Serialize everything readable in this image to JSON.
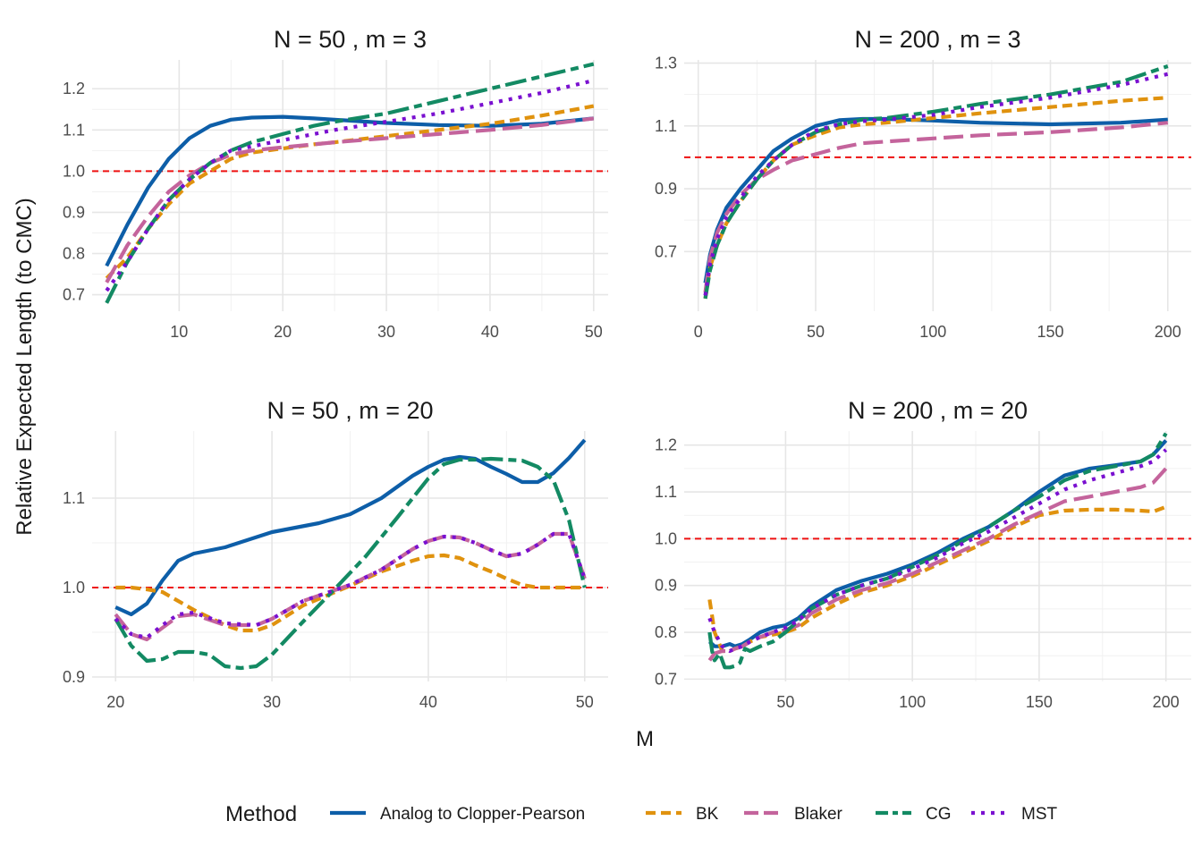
{
  "chart_data": [
    {
      "type": "line",
      "title": "N = 50 , m = 3",
      "xlim": [
        1.6,
        51.4
      ],
      "ylim": [
        0.66,
        1.27
      ],
      "xticks": [
        10,
        20,
        30,
        40,
        50
      ],
      "yticks": [
        0.7,
        0.8,
        0.9,
        1.0,
        1.1,
        1.2
      ],
      "ytick_labels": [
        "0.7",
        "0.8",
        "0.9",
        "1.0",
        "1.1",
        "1.2"
      ],
      "reference_y": 1.0,
      "series": [
        {
          "name": "Analog to Clopper-Pearson",
          "x": [
            3,
            5,
            7,
            9,
            11,
            13,
            15,
            17,
            20,
            23,
            25,
            30,
            35,
            40,
            45,
            50
          ],
          "y": [
            0.77,
            0.87,
            0.96,
            1.03,
            1.08,
            1.11,
            1.125,
            1.13,
            1.132,
            1.128,
            1.125,
            1.117,
            1.112,
            1.11,
            1.115,
            1.128
          ]
        },
        {
          "name": "BK",
          "x": [
            3,
            5,
            7,
            9,
            11,
            13,
            15,
            17,
            20,
            23,
            25,
            30,
            35,
            40,
            45,
            50
          ],
          "y": [
            0.74,
            0.79,
            0.86,
            0.92,
            0.97,
            1.0,
            1.03,
            1.045,
            1.055,
            1.065,
            1.07,
            1.085,
            1.1,
            1.115,
            1.135,
            1.158
          ]
        },
        {
          "name": "Blaker",
          "x": [
            3,
            5,
            7,
            9,
            11,
            13,
            15,
            17,
            20,
            23,
            25,
            30,
            35,
            40,
            45,
            50
          ],
          "y": [
            0.73,
            0.82,
            0.89,
            0.95,
            0.99,
            1.02,
            1.04,
            1.05,
            1.058,
            1.065,
            1.07,
            1.08,
            1.09,
            1.1,
            1.112,
            1.128
          ]
        },
        {
          "name": "CG",
          "x": [
            3,
            5,
            7,
            9,
            11,
            13,
            15,
            17,
            20,
            23,
            25,
            30,
            35,
            40,
            45,
            50
          ],
          "y": [
            0.68,
            0.78,
            0.86,
            0.93,
            0.98,
            1.02,
            1.05,
            1.07,
            1.09,
            1.11,
            1.12,
            1.14,
            1.17,
            1.2,
            1.23,
            1.26
          ]
        },
        {
          "name": "MST",
          "x": [
            3,
            5,
            7,
            9,
            11,
            13,
            15,
            17,
            20,
            23,
            25,
            30,
            35,
            40,
            45,
            50
          ],
          "y": [
            0.71,
            0.78,
            0.86,
            0.93,
            0.98,
            1.02,
            1.05,
            1.06,
            1.075,
            1.09,
            1.1,
            1.12,
            1.14,
            1.165,
            1.19,
            1.22
          ]
        }
      ]
    },
    {
      "type": "line",
      "title": "N = 200 , m = 3",
      "xlim": [
        -6,
        210
      ],
      "ylim": [
        0.51,
        1.31
      ],
      "xticks": [
        0,
        50,
        100,
        150,
        200
      ],
      "yticks": [
        0.7,
        0.9,
        1.1,
        1.3
      ],
      "ytick_labels": [
        "0.7",
        "0.9",
        "1.1",
        "1.3"
      ],
      "reference_y": 1.0,
      "series": [
        {
          "name": "Analog to Clopper-Pearson",
          "x": [
            3,
            5,
            8,
            12,
            18,
            25,
            32,
            40,
            50,
            60,
            70,
            80,
            100,
            120,
            150,
            180,
            200
          ],
          "y": [
            0.6,
            0.69,
            0.77,
            0.84,
            0.9,
            0.96,
            1.02,
            1.06,
            1.1,
            1.118,
            1.122,
            1.122,
            1.117,
            1.11,
            1.105,
            1.11,
            1.12
          ]
        },
        {
          "name": "BK",
          "x": [
            3,
            5,
            8,
            12,
            18,
            25,
            32,
            40,
            50,
            60,
            70,
            80,
            100,
            120,
            150,
            180,
            200
          ],
          "y": [
            0.55,
            0.65,
            0.72,
            0.79,
            0.86,
            0.93,
            0.99,
            1.04,
            1.07,
            1.095,
            1.105,
            1.11,
            1.125,
            1.14,
            1.16,
            1.18,
            1.19
          ]
        },
        {
          "name": "Blaker",
          "x": [
            3,
            5,
            8,
            12,
            18,
            25,
            32,
            40,
            50,
            60,
            70,
            80,
            100,
            120,
            150,
            180,
            200
          ],
          "y": [
            0.57,
            0.68,
            0.76,
            0.82,
            0.88,
            0.93,
            0.96,
            0.99,
            1.01,
            1.03,
            1.045,
            1.05,
            1.06,
            1.07,
            1.08,
            1.095,
            1.11
          ]
        },
        {
          "name": "CG",
          "x": [
            3,
            5,
            8,
            12,
            18,
            25,
            32,
            40,
            50,
            60,
            70,
            80,
            100,
            120,
            150,
            180,
            200
          ],
          "y": [
            0.55,
            0.64,
            0.72,
            0.79,
            0.86,
            0.93,
            0.99,
            1.04,
            1.08,
            1.105,
            1.12,
            1.125,
            1.145,
            1.17,
            1.2,
            1.24,
            1.29
          ]
        },
        {
          "name": "MST",
          "x": [
            3,
            5,
            8,
            12,
            18,
            25,
            32,
            40,
            50,
            60,
            70,
            80,
            100,
            120,
            150,
            180,
            200
          ],
          "y": [
            0.56,
            0.66,
            0.74,
            0.81,
            0.87,
            0.94,
            0.99,
            1.04,
            1.085,
            1.105,
            1.115,
            1.12,
            1.135,
            1.16,
            1.19,
            1.23,
            1.265
          ]
        }
      ]
    },
    {
      "type": "line",
      "title": "N = 50 , m = 20",
      "xlim": [
        18.5,
        51.5
      ],
      "ylim": [
        0.895,
        1.175
      ],
      "xticks": [
        20,
        30,
        40,
        50
      ],
      "yticks": [
        0.9,
        1.0,
        1.1
      ],
      "ytick_labels": [
        "0.9",
        "1.0",
        "1.1"
      ],
      "reference_y": 1.0,
      "series": [
        {
          "name": "Analog to Clopper-Pearson",
          "x": [
            20,
            21,
            22,
            23,
            24,
            25,
            27,
            30,
            33,
            35,
            37,
            39,
            40,
            41,
            42,
            43,
            44,
            45,
            46,
            47,
            48,
            49,
            50
          ],
          "y": [
            0.978,
            0.97,
            0.982,
            1.008,
            1.03,
            1.038,
            1.045,
            1.062,
            1.072,
            1.082,
            1.1,
            1.125,
            1.135,
            1.143,
            1.146,
            1.144,
            1.135,
            1.127,
            1.118,
            1.118,
            1.128,
            1.145,
            1.165
          ]
        },
        {
          "name": "BK",
          "x": [
            20,
            21,
            22,
            23,
            24,
            25,
            27,
            28,
            29,
            30,
            32,
            35,
            37,
            39,
            40,
            41,
            42,
            43,
            44,
            45,
            46,
            47,
            48,
            49,
            50
          ],
          "y": [
            1.0,
            1.0,
            0.998,
            0.995,
            0.985,
            0.975,
            0.958,
            0.952,
            0.952,
            0.958,
            0.98,
            1.002,
            1.018,
            1.03,
            1.035,
            1.036,
            1.033,
            1.025,
            1.018,
            1.01,
            1.003,
            1.0,
            1.0,
            1.0,
            1.0
          ]
        },
        {
          "name": "Blaker",
          "x": [
            20,
            21,
            22,
            23,
            24,
            25,
            27,
            29,
            30,
            32,
            35,
            37,
            39,
            40,
            41,
            42,
            43,
            44,
            45,
            46,
            47,
            48,
            49,
            50
          ],
          "y": [
            0.97,
            0.948,
            0.942,
            0.955,
            0.968,
            0.97,
            0.958,
            0.958,
            0.965,
            0.985,
            1.003,
            1.02,
            1.043,
            1.052,
            1.057,
            1.056,
            1.05,
            1.042,
            1.035,
            1.038,
            1.048,
            1.06,
            1.06,
            1.01
          ]
        },
        {
          "name": "CG",
          "x": [
            20,
            21,
            22,
            23,
            24,
            25,
            26,
            27,
            28,
            29,
            30,
            32,
            34,
            36,
            38,
            40,
            41,
            42,
            43,
            44,
            45,
            46,
            47,
            48,
            49,
            50
          ],
          "y": [
            0.965,
            0.935,
            0.918,
            0.92,
            0.928,
            0.928,
            0.925,
            0.912,
            0.91,
            0.912,
            0.925,
            0.962,
            0.998,
            1.035,
            1.078,
            1.122,
            1.138,
            1.143,
            1.143,
            1.144,
            1.143,
            1.142,
            1.135,
            1.12,
            1.075,
            1.0
          ]
        },
        {
          "name": "MST",
          "x": [
            20,
            21,
            22,
            23,
            24,
            25,
            27,
            29,
            30,
            32,
            35,
            37,
            39,
            40,
            41,
            42,
            43,
            44,
            45,
            46,
            47,
            48,
            49,
            50
          ],
          "y": [
            0.965,
            0.948,
            0.944,
            0.958,
            0.97,
            0.972,
            0.96,
            0.958,
            0.965,
            0.985,
            1.003,
            1.02,
            1.043,
            1.052,
            1.057,
            1.056,
            1.05,
            1.042,
            1.035,
            1.038,
            1.048,
            1.06,
            1.06,
            1.01
          ]
        }
      ]
    },
    {
      "type": "line",
      "title": "N = 200 , m = 20",
      "xlim": [
        10,
        210
      ],
      "ylim": [
        0.695,
        1.23
      ],
      "xticks": [
        50,
        100,
        150,
        200
      ],
      "yticks": [
        0.7,
        0.8,
        0.9,
        1.0,
        1.1,
        1.2
      ],
      "ytick_labels": [
        "0.7",
        "0.8",
        "0.9",
        "1.0",
        "1.1",
        "1.2"
      ],
      "reference_y": 1.0,
      "series": [
        {
          "name": "Analog to Clopper-Pearson",
          "x": [
            20,
            22,
            25,
            28,
            30,
            33,
            36,
            40,
            45,
            50,
            55,
            60,
            70,
            80,
            90,
            100,
            110,
            120,
            130,
            140,
            150,
            160,
            170,
            180,
            190,
            195,
            200
          ],
          "y": [
            0.78,
            0.77,
            0.77,
            0.775,
            0.77,
            0.775,
            0.785,
            0.8,
            0.81,
            0.815,
            0.83,
            0.855,
            0.89,
            0.91,
            0.925,
            0.945,
            0.97,
            1.0,
            1.025,
            1.06,
            1.1,
            1.135,
            1.15,
            1.157,
            1.165,
            1.18,
            1.21
          ]
        },
        {
          "name": "BK",
          "x": [
            20,
            22,
            25,
            28,
            30,
            33,
            36,
            40,
            45,
            50,
            55,
            60,
            70,
            80,
            90,
            100,
            110,
            120,
            130,
            140,
            150,
            160,
            170,
            180,
            190,
            195,
            200
          ],
          "y": [
            0.87,
            0.8,
            0.76,
            0.76,
            0.765,
            0.77,
            0.78,
            0.79,
            0.795,
            0.8,
            0.81,
            0.83,
            0.86,
            0.885,
            0.9,
            0.92,
            0.945,
            0.97,
            0.995,
            1.025,
            1.05,
            1.06,
            1.062,
            1.062,
            1.06,
            1.058,
            1.068
          ]
        },
        {
          "name": "Blaker",
          "x": [
            20,
            22,
            25,
            28,
            30,
            33,
            36,
            40,
            45,
            50,
            55,
            60,
            70,
            80,
            90,
            100,
            110,
            120,
            130,
            140,
            150,
            160,
            170,
            180,
            190,
            195,
            200
          ],
          "y": [
            0.74,
            0.755,
            0.76,
            0.76,
            0.765,
            0.77,
            0.78,
            0.79,
            0.8,
            0.805,
            0.815,
            0.84,
            0.87,
            0.89,
            0.905,
            0.925,
            0.95,
            0.975,
            1.0,
            1.03,
            1.055,
            1.08,
            1.09,
            1.1,
            1.11,
            1.12,
            1.15
          ]
        },
        {
          "name": "CG",
          "x": [
            20,
            21,
            22,
            24,
            26,
            28,
            30,
            32,
            34,
            36,
            40,
            45,
            50,
            55,
            60,
            70,
            80,
            90,
            100,
            110,
            120,
            130,
            140,
            150,
            160,
            170,
            180,
            190,
            195,
            200
          ],
          "y": [
            0.8,
            0.76,
            0.74,
            0.755,
            0.725,
            0.725,
            0.728,
            0.735,
            0.765,
            0.76,
            0.77,
            0.78,
            0.8,
            0.825,
            0.85,
            0.88,
            0.9,
            0.915,
            0.94,
            0.965,
            0.995,
            1.025,
            1.06,
            1.09,
            1.125,
            1.145,
            1.155,
            1.165,
            1.18,
            1.225
          ]
        },
        {
          "name": "MST",
          "x": [
            20,
            22,
            25,
            28,
            30,
            33,
            36,
            40,
            45,
            50,
            55,
            60,
            70,
            80,
            90,
            100,
            110,
            120,
            130,
            140,
            150,
            160,
            170,
            180,
            190,
            195,
            200
          ],
          "y": [
            0.83,
            0.8,
            0.77,
            0.76,
            0.765,
            0.77,
            0.78,
            0.79,
            0.8,
            0.81,
            0.825,
            0.85,
            0.88,
            0.9,
            0.915,
            0.935,
            0.96,
            0.99,
            1.015,
            1.045,
            1.075,
            1.105,
            1.125,
            1.14,
            1.155,
            1.165,
            1.19
          ]
        }
      ]
    }
  ],
  "axes": {
    "xlabel": "M",
    "ylabel": "Relative Expected Length (to CMC)"
  },
  "legend": {
    "title": "Method",
    "position": "bottom",
    "entries": [
      {
        "label": "Analog to Clopper-Pearson",
        "color": "#0d5ea8",
        "dash": "solid"
      },
      {
        "label": "BK",
        "color": "#e0920e",
        "dash": "dashed"
      },
      {
        "label": "Blaker",
        "color": "#c4649c",
        "dash": "longdash"
      },
      {
        "label": "CG",
        "color": "#138a63",
        "dash": "twodash"
      },
      {
        "label": "MST",
        "color": "#7a10d0",
        "dash": "dotted"
      }
    ]
  },
  "reference_line_color": "#ee1111"
}
